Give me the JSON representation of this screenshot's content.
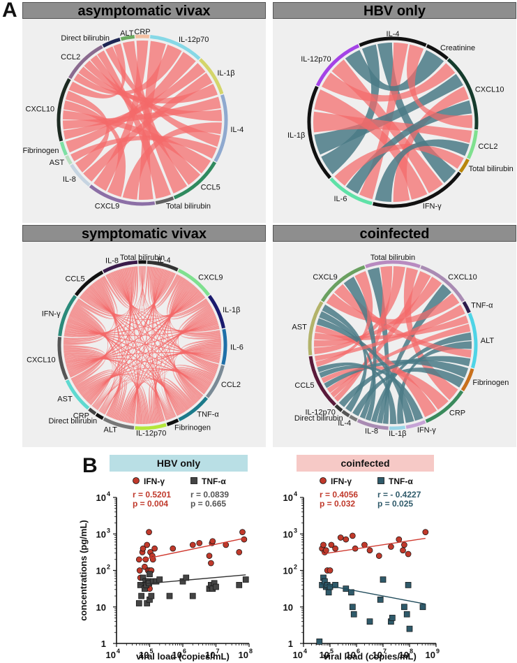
{
  "figure": {
    "panel_a_label": "A",
    "panel_b_label": "B"
  },
  "colors": {
    "positive": "#f46a6a",
    "negative": "#4a7a86",
    "panel_bg": "#efefef",
    "title_bg": "#8e8e8e",
    "hbv_header": "#b9dfe5",
    "coinf_header": "#f6c9c6",
    "ifn_marker": "#c0392b",
    "tnf_marker": "#444444"
  },
  "chord_diagrams": [
    {
      "id": "asymptomatic",
      "title": "asymptomatic vivax",
      "nodes": [
        {
          "label": "CRP",
          "color": "#f4bfa0",
          "span": 3
        },
        {
          "label": "IL-12p70",
          "color": "#86d8e6",
          "span": 12
        },
        {
          "label": "IL-1β",
          "color": "#d4d56a",
          "span": 9
        },
        {
          "label": "IL-4",
          "color": "#8fa9cf",
          "span": 15
        },
        {
          "label": "CCL5",
          "color": "#2f8a5e",
          "span": 12
        },
        {
          "label": "Total bilirubin",
          "color": "#616161",
          "span": 4
        },
        {
          "label": "CXCL9",
          "color": "#8c6fa6",
          "span": 15
        },
        {
          "label": "IL-8",
          "color": "#c6d4e1",
          "span": 6
        },
        {
          "label": "AST",
          "color": "#b7dfc0",
          "span": 2
        },
        {
          "label": "Fibrinogen",
          "color": "#7de0a4",
          "span": 3
        },
        {
          "label": "CXCL10",
          "color": "#1d2a22",
          "span": 14
        },
        {
          "label": "CCL2",
          "color": "#8a6a8f",
          "span": 10
        },
        {
          "label": "Direct bilirubin",
          "color": "#1e2653",
          "span": 4
        },
        {
          "label": "ALT",
          "color": "#6aaa60",
          "span": 3
        }
      ],
      "links": [
        [
          "IL-12p70",
          "CXCL9",
          "pos"
        ],
        [
          "IL-12p70",
          "CCL2",
          "pos"
        ],
        [
          "IL-12p70",
          "Fibrinogen",
          "pos"
        ],
        [
          "IL-1β",
          "CXCL10",
          "pos"
        ],
        [
          "IL-1β",
          "IL-8",
          "pos"
        ],
        [
          "IL-1β",
          "CCL2",
          "pos"
        ],
        [
          "IL-4",
          "CXCL10",
          "pos"
        ],
        [
          "IL-4",
          "CCL2",
          "pos"
        ],
        [
          "IL-4",
          "CXCL9",
          "pos"
        ],
        [
          "IL-4",
          "Direct bilirubin",
          "pos"
        ],
        [
          "CCL5",
          "CXCL10",
          "pos"
        ],
        [
          "CCL5",
          "CCL2",
          "pos"
        ],
        [
          "CCL5",
          "ALT",
          "pos"
        ],
        [
          "CXCL9",
          "CXCL10",
          "pos"
        ],
        [
          "CXCL9",
          "CRP",
          "pos"
        ],
        [
          "Total bilirubin",
          "CCL2",
          "pos"
        ],
        [
          "IL-8",
          "CXCL10",
          "pos"
        ],
        [
          "AST",
          "IL-4",
          "pos"
        ],
        [
          "CXCL10",
          "Direct bilirubin",
          "pos"
        ]
      ]
    },
    {
      "id": "hbv",
      "title": "HBV only",
      "nodes": [
        {
          "label": "IL-4",
          "color": "#111111",
          "span": 14
        },
        {
          "label": "Creatinine",
          "color": "#111111",
          "span": 5
        },
        {
          "label": "CXCL10",
          "color": "#153b2c",
          "span": 16
        },
        {
          "label": "CCL2",
          "color": "#7fe08f",
          "span": 6
        },
        {
          "label": "Total bilirubin",
          "color": "#b8860b",
          "span": 3
        },
        {
          "label": "IFN-γ",
          "color": "#111111",
          "span": 20
        },
        {
          "label": "IL-6",
          "color": "#5fe1a7",
          "span": 10
        },
        {
          "label": "IL-1β",
          "color": "#111111",
          "span": 20
        },
        {
          "label": "IL-12p70",
          "color": "#a443e6",
          "span": 12
        }
      ],
      "links": [
        [
          "IL-4",
          "IL-1β",
          "neg"
        ],
        [
          "IL-4",
          "IFN-γ",
          "neg"
        ],
        [
          "IL-4",
          "IL-6",
          "pos"
        ],
        [
          "IL-12p70",
          "CXCL10",
          "pos"
        ],
        [
          "IL-12p70",
          "IFN-γ",
          "pos"
        ],
        [
          "IL-12p70",
          "Creatinine",
          "neg"
        ],
        [
          "IL-1β",
          "CXCL10",
          "neg"
        ],
        [
          "IL-1β",
          "CCL2",
          "pos"
        ],
        [
          "IL-1β",
          "IFN-γ",
          "pos"
        ],
        [
          "CXCL10",
          "IFN-γ",
          "pos"
        ],
        [
          "CXCL10",
          "IL-6",
          "neg"
        ],
        [
          "IL-6",
          "Total bilirubin",
          "pos"
        ],
        [
          "IFN-γ",
          "CCL2",
          "neg"
        ],
        [
          "IL-4",
          "CXCL10",
          "pos"
        ]
      ]
    },
    {
      "id": "symptomatic",
      "title": "symptomatic vivax",
      "nodes": [
        {
          "label": "Total bilirubin",
          "color": "#111111",
          "span": 2
        },
        {
          "label": "IL-4",
          "color": "#333333",
          "span": 8
        },
        {
          "label": "CXCL9",
          "color": "#7fe08f",
          "span": 10
        },
        {
          "label": "IL-1β",
          "color": "#1a1a6e",
          "span": 9
        },
        {
          "label": "IL-6",
          "color": "#1f6fa8",
          "span": 9
        },
        {
          "label": "CCL2",
          "color": "#7a8a96",
          "span": 9
        },
        {
          "label": "TNF-α",
          "color": "#1c7a8a",
          "span": 9
        },
        {
          "label": "Fibrinogen",
          "color": "#111111",
          "span": 3
        },
        {
          "label": "IL-12p70",
          "color": "#b3e63b",
          "span": 8
        },
        {
          "label": "ALT",
          "color": "#777777",
          "span": 8
        },
        {
          "label": "Direct bilirubin",
          "color": "#111111",
          "span": 2
        },
        {
          "label": "CRP",
          "color": "#444444",
          "span": 2
        },
        {
          "label": "AST",
          "color": "#5fd9d0",
          "span": 9
        },
        {
          "label": "CXCL10",
          "color": "#555555",
          "span": 11
        },
        {
          "label": "IFN-γ",
          "color": "#2a8a7a",
          "span": 11
        },
        {
          "label": "CCL5",
          "color": "#111111",
          "span": 9
        },
        {
          "label": "IL-8",
          "color": "#3a1b4a",
          "span": 9
        }
      ],
      "links": "all-pairs-positive"
    },
    {
      "id": "coinfected",
      "title": "coinfected",
      "nodes": [
        {
          "label": "Total bilirubin",
          "color": "#b88ac0",
          "span": 14
        },
        {
          "label": "CXCL10",
          "color": "#a98bb3",
          "span": 14
        },
        {
          "label": "TNF-α",
          "color": "#2a1b4a",
          "span": 3
        },
        {
          "label": "ALT",
          "color": "#4fd4e6",
          "span": 14
        },
        {
          "label": "Fibrinogen",
          "color": "#c8701c",
          "span": 6
        },
        {
          "label": "CRP",
          "color": "#3a8a5c",
          "span": 12
        },
        {
          "label": "IFN-γ",
          "color": "#c6a3d6",
          "span": 5
        },
        {
          "label": "IL-1β",
          "color": "#9ad6e8",
          "span": 4
        },
        {
          "label": "IL-8",
          "color": "#a98bb3",
          "span": 8
        },
        {
          "label": "IL-4",
          "color": "#7a7a7a",
          "span": 2
        },
        {
          "label": "Direct bilirubin",
          "color": "#555555",
          "span": 2
        },
        {
          "label": "IL-12p70",
          "color": "#333333",
          "span": 2
        },
        {
          "label": "CCL5",
          "color": "#5a1a3a",
          "span": 14
        },
        {
          "label": "AST",
          "color": "#b3b36a",
          "span": 14
        },
        {
          "label": "CXCL9",
          "color": "#6aa060",
          "span": 14
        }
      ],
      "links": [
        [
          "Total bilirubin",
          "IL-8",
          "neg"
        ],
        [
          "Total bilirubin",
          "CCL5",
          "pos"
        ],
        [
          "Total bilirubin",
          "AST",
          "pos"
        ],
        [
          "Total bilirubin",
          "CRP",
          "pos"
        ],
        [
          "CXCL10",
          "CCL5",
          "pos"
        ],
        [
          "CXCL10",
          "AST",
          "pos"
        ],
        [
          "CXCL10",
          "IL-8",
          "neg"
        ],
        [
          "CXCL10",
          "CXCL9",
          "pos"
        ],
        [
          "ALT",
          "AST",
          "pos"
        ],
        [
          "ALT",
          "CCL5",
          "pos"
        ],
        [
          "ALT",
          "IL-8",
          "neg"
        ],
        [
          "ALT",
          "IL-1β",
          "neg"
        ],
        [
          "ALT",
          "CXCL9",
          "pos"
        ],
        [
          "Fibrinogen",
          "CCL5",
          "neg"
        ],
        [
          "Fibrinogen",
          "IL-4",
          "neg"
        ],
        [
          "CRP",
          "CCL5",
          "pos"
        ],
        [
          "CRP",
          "AST",
          "pos"
        ],
        [
          "IFN-γ",
          "CCL5",
          "neg"
        ],
        [
          "IFN-γ",
          "AST",
          "neg"
        ],
        [
          "IL-1β",
          "CCL5",
          "neg"
        ],
        [
          "IL-8",
          "AST",
          "neg"
        ],
        [
          "IL-8",
          "CXCL9",
          "neg"
        ],
        [
          "CCL5",
          "CXCL9",
          "pos"
        ],
        [
          "AST",
          "Direct bilirubin",
          "neg"
        ],
        [
          "TNF-α",
          "CCL5",
          "pos"
        ],
        [
          "IL-12p70",
          "ALT",
          "neg"
        ]
      ]
    }
  ],
  "chart_data": [
    {
      "type": "scatter",
      "title": "HBV only",
      "xlabel": "viral load (copies/mL)",
      "ylabel": "concentrations (pg/mL)",
      "xscale": "log10",
      "yscale": "log10",
      "xlim": [
        4,
        8
      ],
      "ylim": [
        0,
        4
      ],
      "x_ticks": [
        "10",
        "10",
        "10",
        "10",
        "10"
      ],
      "x_tick_exponents": [
        "4",
        "5",
        "6",
        "7",
        "8"
      ],
      "y_ticks": [
        "1",
        "10",
        "10",
        "10",
        "10"
      ],
      "y_tick_exponents": [
        "",
        "",
        "2",
        "3",
        "4"
      ],
      "series": [
        {
          "name": "IFN-γ",
          "marker": "circle",
          "stats_r": "r = 0.5201",
          "stats_p": "p = 0.004",
          "log_x": [
            4.68,
            4.7,
            4.72,
            4.78,
            4.8,
            4.85,
            4.88,
            4.9,
            4.92,
            4.95,
            4.98,
            5.0,
            5.0,
            5.02,
            5.05,
            5.08,
            5.1,
            5.15,
            5.7,
            6.3,
            6.5,
            6.8,
            6.85,
            6.88,
            6.9,
            7.3,
            7.7,
            7.8,
            7.85
          ],
          "log_y": [
            2.3,
            2.0,
            1.8,
            2.5,
            2.6,
            2.1,
            2.3,
            1.6,
            2.7,
            2.0,
            3.05,
            2.0,
            1.5,
            2.5,
            2.0,
            2.4,
            2.3,
            2.6,
            2.6,
            2.7,
            2.75,
            2.4,
            2.2,
            2.75,
            2.8,
            2.7,
            2.5,
            3.05,
            2.85
          ],
          "fit": {
            "log_x": [
              4.68,
              7.85
            ],
            "log_y": [
              2.28,
              2.88
            ]
          }
        },
        {
          "name": "TNF-α",
          "marker": "square",
          "stats_r": "r = 0.0839",
          "stats_p": "p = 0.665",
          "log_x": [
            4.68,
            4.72,
            4.75,
            4.8,
            4.85,
            4.88,
            4.9,
            4.92,
            4.95,
            4.98,
            5.0,
            5.0,
            5.05,
            5.1,
            5.2,
            5.3,
            5.6,
            6.0,
            6.1,
            6.3,
            6.8,
            6.85,
            6.9,
            6.95,
            7.0,
            7.7,
            7.9
          ],
          "log_y": [
            1.1,
            1.6,
            1.3,
            1.8,
            1.5,
            1.7,
            1.6,
            1.1,
            1.7,
            1.65,
            1.2,
            1.9,
            1.3,
            1.7,
            1.7,
            1.75,
            1.3,
            1.7,
            1.8,
            1.3,
            1.5,
            1.6,
            1.5,
            1.65,
            1.55,
            1.6,
            1.75
          ],
          "fit": {
            "log_x": [
              4.68,
              7.9
            ],
            "log_y": [
              1.62,
              1.88
            ]
          }
        }
      ]
    },
    {
      "type": "scatter",
      "title": "coinfected",
      "xlabel": "viral load (copies/mL)",
      "ylabel": "",
      "xscale": "log10",
      "yscale": "log10",
      "xlim": [
        4,
        9
      ],
      "ylim": [
        0,
        4
      ],
      "x_ticks": [
        "10",
        "10",
        "10",
        "10",
        "10",
        "10"
      ],
      "x_tick_exponents": [
        "4",
        "5",
        "6",
        "7",
        "8",
        "9"
      ],
      "y_ticks": [
        "1",
        "10",
        "10",
        "10",
        "10"
      ],
      "y_tick_exponents": [
        "",
        "",
        "2",
        "3",
        "4"
      ],
      "series": [
        {
          "name": "IFN-γ",
          "marker": "circle",
          "stats_r": "r = 0.4056",
          "stats_p": "p = 0.032",
          "log_x": [
            4.7,
            4.75,
            4.8,
            4.85,
            4.9,
            5.0,
            5.05,
            5.2,
            5.4,
            5.6,
            5.85,
            5.95,
            6.3,
            6.5,
            6.85,
            7.3,
            7.6,
            7.75,
            7.8,
            7.95,
            8.6
          ],
          "log_y": [
            2.6,
            2.7,
            2.5,
            2.55,
            2.0,
            2.0,
            2.7,
            2.6,
            2.9,
            2.85,
            2.95,
            2.6,
            2.7,
            2.55,
            2.4,
            2.65,
            2.85,
            2.55,
            2.7,
            2.45,
            3.05
          ],
          "fit": {
            "log_x": [
              4.7,
              8.6
            ],
            "log_y": [
              2.45,
              2.88
            ]
          }
        },
        {
          "name": "TNF-α",
          "marker": "square",
          "stats_r": "r = - 0.4227",
          "stats_p": "p = 0.025",
          "log_x": [
            4.6,
            4.7,
            4.75,
            4.8,
            4.85,
            4.9,
            4.95,
            5.0,
            5.2,
            5.6,
            5.8,
            5.85,
            5.9,
            6.5,
            6.9,
            7.0,
            7.3,
            7.35,
            7.8,
            7.9,
            7.95,
            8.0,
            8.5
          ],
          "log_y": [
            0.05,
            1.6,
            1.8,
            1.7,
            1.55,
            1.6,
            1.4,
            1.55,
            1.6,
            1.5,
            1.4,
            1.0,
            0.8,
            0.6,
            1.2,
            1.75,
            0.6,
            0.7,
            1.0,
            0.8,
            1.6,
            0.4,
            1.0
          ],
          "fit": {
            "log_x": [
              4.6,
              8.6
            ],
            "log_y": [
              1.63,
              1.08
            ]
          }
        }
      ]
    }
  ]
}
